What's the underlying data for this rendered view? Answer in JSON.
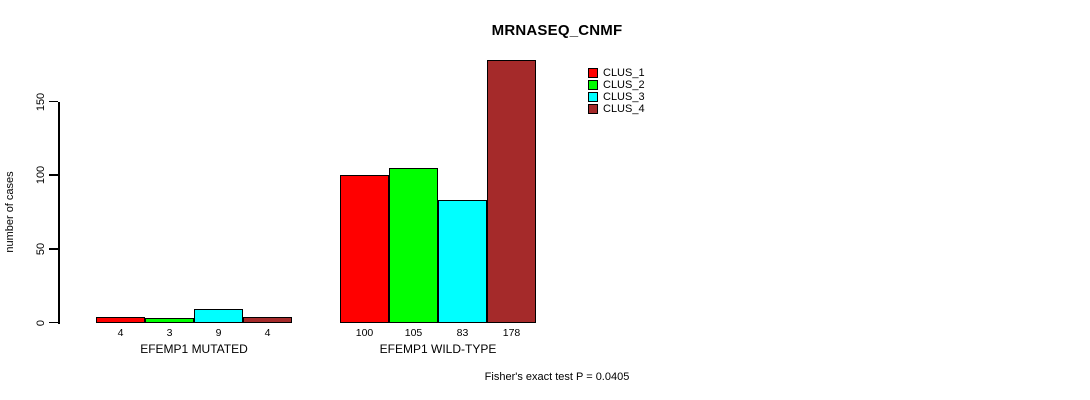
{
  "title": "MRNASEQ_CNMF",
  "footer": "Fisher's exact test P = 0.0405",
  "y_axis": {
    "label": "number of cases",
    "ticks": [
      0,
      50,
      100,
      150
    ]
  },
  "legend": {
    "position": "top-right",
    "items": [
      {
        "label": "CLUS_1",
        "color": "#ff0000"
      },
      {
        "label": "CLUS_2",
        "color": "#00ff00"
      },
      {
        "label": "CLUS_3",
        "color": "#00ffff"
      },
      {
        "label": "CLUS_4",
        "color": "#a52a2a"
      }
    ]
  },
  "chart_data": {
    "type": "bar",
    "title": "MRNASEQ_CNMF",
    "xlabel": "",
    "ylabel": "number of cases",
    "ylim": [
      0,
      185
    ],
    "yticks": [
      0,
      50,
      100,
      150
    ],
    "grid": false,
    "legend_position": "top-right",
    "bar_value_labels": true,
    "categories": [
      "EFEMP1 MUTATED",
      "EFEMP1 WILD-TYPE"
    ],
    "series": [
      {
        "name": "CLUS_1",
        "color": "#ff0000",
        "values": [
          4,
          100
        ]
      },
      {
        "name": "CLUS_2",
        "color": "#00ff00",
        "values": [
          3,
          105
        ]
      },
      {
        "name": "CLUS_3",
        "color": "#00ffff",
        "values": [
          9,
          83
        ]
      },
      {
        "name": "CLUS_4",
        "color": "#a52a2a",
        "values": [
          4,
          178
        ]
      }
    ],
    "annotation": "Fisher's exact test P = 0.0405"
  }
}
